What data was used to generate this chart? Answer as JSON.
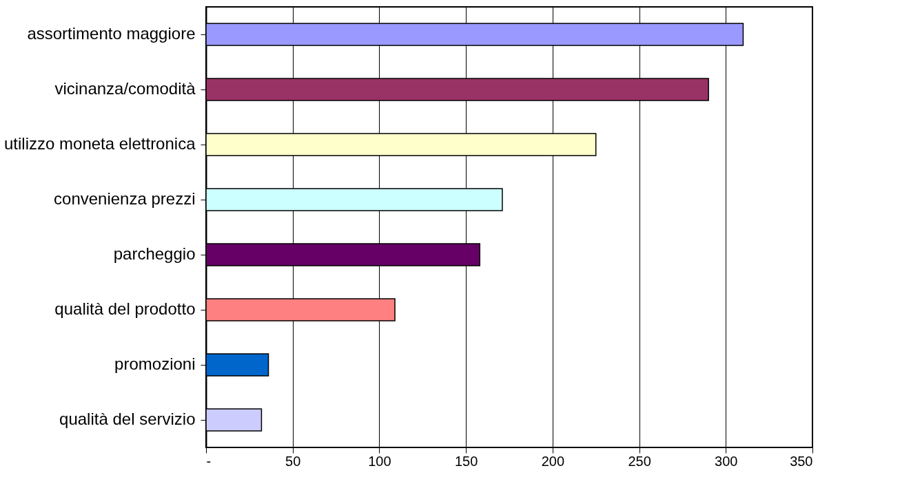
{
  "chart_data": {
    "type": "bar",
    "orientation": "horizontal",
    "categories": [
      "assortimento maggiore",
      "vicinanza/comodità",
      "utilizzo moneta elettronica",
      "convenienza prezzi",
      "parcheggio",
      "qualità del prodotto",
      "promozioni",
      "qualità del servizio"
    ],
    "values": [
      310,
      290,
      225,
      171,
      158,
      109,
      36,
      32
    ],
    "colors": [
      "#9999ff",
      "#993366",
      "#ffffcc",
      "#ccffff",
      "#660066",
      "#ff8080",
      "#0066cc",
      "#ccccff"
    ],
    "xlim": [
      0,
      350
    ],
    "xticks": [
      {
        "value": 0,
        "label": "-"
      },
      50,
      100,
      150,
      200,
      250,
      300,
      350
    ],
    "grid": "x"
  }
}
